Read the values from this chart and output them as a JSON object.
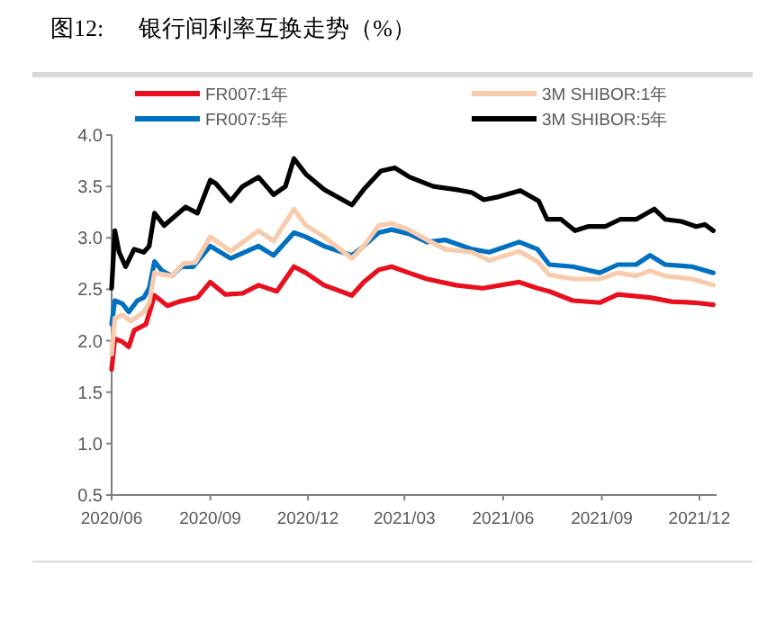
{
  "chart_data": {
    "type": "line",
    "title": "图12:      银行间利率互换走势（%）",
    "xlim": [
      "2020-06-01",
      "2021-12-17"
    ],
    "xticks": [
      {
        "value": "2020-06-01",
        "label": "2020/06"
      },
      {
        "value": "2020-09-01",
        "label": "2020/09"
      },
      {
        "value": "2020-12-01",
        "label": "2020/12"
      },
      {
        "value": "2021-03-01",
        "label": "2021/03"
      },
      {
        "value": "2021-06-01",
        "label": "2021/06"
      },
      {
        "value": "2021-09-01",
        "label": "2021/09"
      },
      {
        "value": "2021-12-01",
        "label": "2021/12"
      }
    ],
    "ylim": [
      0.5,
      4.0
    ],
    "yticks": [
      {
        "value": 0.5,
        "label": "0.5"
      },
      {
        "value": 1.0,
        "label": "1.0"
      },
      {
        "value": 1.5,
        "label": "1.5"
      },
      {
        "value": 2.0,
        "label": "2.0"
      },
      {
        "value": 2.5,
        "label": "2.5"
      },
      {
        "value": 3.0,
        "label": "3.0"
      },
      {
        "value": 3.5,
        "label": "3.5"
      },
      {
        "value": 4.0,
        "label": "4.0"
      }
    ],
    "legend": "top",
    "line_style": "solid",
    "series": [
      {
        "name": "FR007:1年",
        "color": "#e8101f",
        "x": [
          "2020-06-01",
          "2020-06-04",
          "2020-06-11",
          "2020-06-17",
          "2020-06-22",
          "2020-07-03",
          "2020-07-11",
          "2020-07-23",
          "2020-08-03",
          "2020-08-20",
          "2020-09-01",
          "2020-09-15",
          "2020-10-01",
          "2020-10-16",
          "2020-11-02",
          "2020-11-18",
          "2020-11-29",
          "2020-12-16",
          "2021-01-11",
          "2021-01-22",
          "2021-02-05",
          "2021-02-17",
          "2021-03-05",
          "2021-03-22",
          "2021-04-18",
          "2021-05-13",
          "2021-06-16",
          "2021-07-03",
          "2021-07-14",
          "2021-08-05",
          "2021-08-30",
          "2021-09-16",
          "2021-10-16",
          "2021-11-05",
          "2021-11-27",
          "2021-12-14"
        ],
        "values": [
          1.72,
          2.02,
          1.99,
          1.94,
          2.1,
          2.16,
          2.44,
          2.34,
          2.38,
          2.42,
          2.57,
          2.45,
          2.46,
          2.54,
          2.48,
          2.72,
          2.66,
          2.54,
          2.44,
          2.57,
          2.69,
          2.72,
          2.66,
          2.6,
          2.54,
          2.51,
          2.57,
          2.51,
          2.48,
          2.39,
          2.37,
          2.45,
          2.42,
          2.38,
          2.37,
          2.35
        ]
      },
      {
        "name": "FR007:5年",
        "color": "#0070c0",
        "x": [
          "2020-06-01",
          "2020-06-04",
          "2020-06-11",
          "2020-06-17",
          "2020-06-25",
          "2020-07-01",
          "2020-07-06",
          "2020-07-11",
          "2020-07-18",
          "2020-07-27",
          "2020-08-05",
          "2020-08-16",
          "2020-09-01",
          "2020-09-20",
          "2020-10-16",
          "2020-10-30",
          "2020-11-18",
          "2020-11-29",
          "2020-12-16",
          "2021-01-11",
          "2021-01-22",
          "2021-02-05",
          "2021-02-17",
          "2021-03-05",
          "2021-03-22",
          "2021-04-08",
          "2021-05-03",
          "2021-05-19",
          "2021-06-16",
          "2021-07-03",
          "2021-07-14",
          "2021-08-05",
          "2021-08-30",
          "2021-09-16",
          "2021-10-03",
          "2021-10-16",
          "2021-10-30",
          "2021-11-24",
          "2021-12-14"
        ],
        "values": [
          2.16,
          2.39,
          2.36,
          2.28,
          2.39,
          2.42,
          2.51,
          2.77,
          2.68,
          2.63,
          2.72,
          2.72,
          2.92,
          2.8,
          2.92,
          2.83,
          3.05,
          3.01,
          2.92,
          2.83,
          2.92,
          3.05,
          3.08,
          3.04,
          2.96,
          2.98,
          2.89,
          2.86,
          2.96,
          2.89,
          2.74,
          2.72,
          2.66,
          2.74,
          2.74,
          2.83,
          2.74,
          2.72,
          2.66
        ]
      },
      {
        "name": "3M SHIBOR:1年",
        "color": "#f8cbad",
        "x": [
          "2020-06-01",
          "2020-06-04",
          "2020-06-11",
          "2020-06-19",
          "2020-07-01",
          "2020-07-06",
          "2020-07-11",
          "2020-07-27",
          "2020-08-07",
          "2020-08-18",
          "2020-09-01",
          "2020-09-20",
          "2020-10-16",
          "2020-10-30",
          "2020-11-18",
          "2020-11-29",
          "2020-12-16",
          "2021-01-11",
          "2021-01-22",
          "2021-02-05",
          "2021-02-17",
          "2021-03-05",
          "2021-03-22",
          "2021-04-08",
          "2021-05-03",
          "2021-05-19",
          "2021-06-16",
          "2021-07-03",
          "2021-07-14",
          "2021-08-05",
          "2021-08-30",
          "2021-09-16",
          "2021-10-03",
          "2021-10-16",
          "2021-10-30",
          "2021-11-24",
          "2021-12-14"
        ],
        "values": [
          1.87,
          2.22,
          2.25,
          2.19,
          2.28,
          2.37,
          2.66,
          2.63,
          2.75,
          2.76,
          3.01,
          2.87,
          3.07,
          2.97,
          3.28,
          3.12,
          3.01,
          2.8,
          2.92,
          3.12,
          3.14,
          3.08,
          2.98,
          2.89,
          2.86,
          2.78,
          2.87,
          2.77,
          2.64,
          2.6,
          2.6,
          2.66,
          2.63,
          2.68,
          2.63,
          2.6,
          2.54
        ]
      },
      {
        "name": "3M SHIBOR:5年",
        "color": "#000000",
        "x": [
          "2020-06-01",
          "2020-06-04",
          "2020-06-08",
          "2020-06-14",
          "2020-06-22",
          "2020-07-01",
          "2020-07-06",
          "2020-07-11",
          "2020-07-20",
          "2020-08-09",
          "2020-08-20",
          "2020-09-01",
          "2020-09-06",
          "2020-09-20",
          "2020-10-01",
          "2020-10-16",
          "2020-10-30",
          "2020-11-10",
          "2020-11-18",
          "2020-11-29",
          "2020-12-16",
          "2021-01-11",
          "2021-01-22",
          "2021-02-07",
          "2021-02-20",
          "2021-03-06",
          "2021-03-28",
          "2021-04-18",
          "2021-05-03",
          "2021-05-14",
          "2021-05-28",
          "2021-06-17",
          "2021-07-04",
          "2021-07-12",
          "2021-07-25",
          "2021-08-07",
          "2021-08-19",
          "2021-09-04",
          "2021-09-18",
          "2021-10-03",
          "2021-10-20",
          "2021-10-30",
          "2021-11-14",
          "2021-11-28",
          "2021-12-06",
          "2021-12-14"
        ],
        "values": [
          2.51,
          3.07,
          2.86,
          2.72,
          2.89,
          2.86,
          2.92,
          3.24,
          3.12,
          3.3,
          3.24,
          3.56,
          3.53,
          3.36,
          3.5,
          3.59,
          3.42,
          3.5,
          3.77,
          3.62,
          3.47,
          3.32,
          3.47,
          3.65,
          3.68,
          3.59,
          3.5,
          3.47,
          3.44,
          3.37,
          3.4,
          3.46,
          3.36,
          3.18,
          3.18,
          3.07,
          3.11,
          3.11,
          3.18,
          3.18,
          3.28,
          3.18,
          3.16,
          3.11,
          3.13,
          3.07
        ]
      }
    ]
  }
}
